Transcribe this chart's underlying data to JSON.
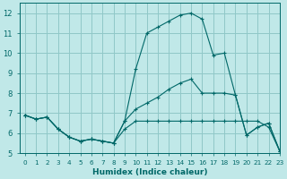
{
  "bg_color": "#c0e8e8",
  "grid_color": "#90c8c8",
  "line_color": "#006868",
  "xlabel": "Humidex (Indice chaleur)",
  "xlim": [
    -0.5,
    23
  ],
  "ylim": [
    5,
    12.5
  ],
  "xticks": [
    0,
    1,
    2,
    3,
    4,
    5,
    6,
    7,
    8,
    9,
    10,
    11,
    12,
    13,
    14,
    15,
    16,
    17,
    18,
    19,
    20,
    21,
    22,
    23
  ],
  "yticks": [
    5,
    6,
    7,
    8,
    9,
    10,
    11,
    12
  ],
  "curve1_x": [
    0,
    1,
    2,
    3,
    4,
    5,
    6,
    7,
    8,
    9,
    10,
    11,
    12,
    13,
    14,
    15,
    16,
    17,
    18,
    19,
    20,
    21,
    22,
    23
  ],
  "curve1_y": [
    6.9,
    6.7,
    6.8,
    6.2,
    5.8,
    5.6,
    5.7,
    5.6,
    5.5,
    6.2,
    6.6,
    6.6,
    6.6,
    6.6,
    6.6,
    6.6,
    6.6,
    6.6,
    6.6,
    6.6,
    6.6,
    6.6,
    6.3,
    5.1
  ],
  "curve2_x": [
    0,
    1,
    2,
    3,
    4,
    5,
    6,
    7,
    8,
    9,
    10,
    11,
    12,
    13,
    14,
    15,
    16,
    17,
    18,
    19,
    20,
    21,
    22,
    23
  ],
  "curve2_y": [
    6.9,
    6.7,
    6.8,
    6.2,
    5.8,
    5.6,
    5.7,
    5.6,
    5.5,
    6.6,
    9.2,
    11.0,
    11.3,
    11.6,
    11.9,
    12.0,
    11.7,
    9.9,
    10.0,
    7.9,
    5.9,
    6.3,
    6.5,
    5.1
  ],
  "curve3_x": [
    0,
    1,
    2,
    3,
    4,
    5,
    6,
    7,
    8,
    9,
    10,
    11,
    12,
    13,
    14,
    15,
    16,
    17,
    18,
    19,
    20,
    21,
    22,
    23
  ],
  "curve3_y": [
    6.9,
    6.7,
    6.8,
    6.2,
    5.8,
    5.6,
    5.7,
    5.6,
    5.5,
    6.6,
    7.2,
    7.5,
    7.8,
    8.2,
    8.5,
    8.7,
    8.0,
    8.0,
    8.0,
    7.9,
    5.9,
    6.3,
    6.5,
    5.1
  ]
}
